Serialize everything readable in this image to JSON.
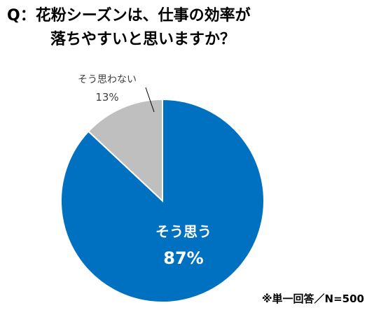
{
  "title": {
    "line1": "Q：花粉シーズンは、仕事の効率が",
    "line2": "落ちやすいと思いますか？"
  },
  "note": "※単一回答／N=500",
  "chart_data": {
    "type": "pie",
    "title": "Q：花粉シーズンは、仕事の効率が落ちやすいと思いますか？",
    "slices": [
      {
        "label": "そう思う",
        "value": 87,
        "value_label": "87%",
        "color": "#0070C0"
      },
      {
        "label": "そう思わない",
        "value": 13,
        "value_label": "13%",
        "color": "#BFBFBF"
      }
    ],
    "start_angle": "12 o'clock",
    "direction": "clockwise",
    "legend": "none"
  }
}
